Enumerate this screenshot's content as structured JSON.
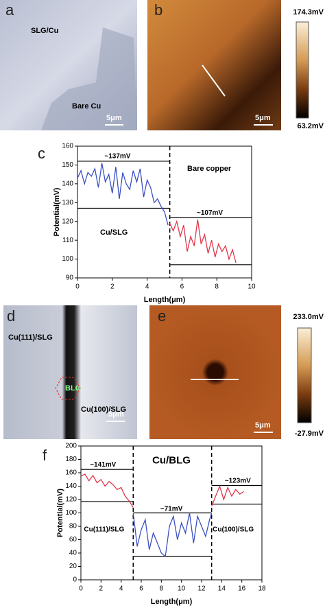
{
  "images": {
    "a": {
      "label": "a",
      "texts": [
        "SLG/Cu",
        "Bare Cu"
      ],
      "scale": "5μm"
    },
    "b": {
      "label": "b",
      "scale": "5μm",
      "colorbar": [
        "174.3mV",
        "63.2mV"
      ]
    },
    "d": {
      "label": "d",
      "texts": [
        "Cu(111)/SLG",
        "Cu(100)/SLG",
        "BLG"
      ],
      "scale": "5μm"
    },
    "e": {
      "label": "e",
      "scale": "5μm",
      "colorbar": [
        "233.0mV",
        "-27.9mV"
      ]
    }
  },
  "chart_data": [
    {
      "type": "line",
      "panel_label": "c",
      "xlabel": "Length(μm)",
      "ylabel": "Potential(mV)",
      "xlim": [
        0,
        10
      ],
      "ylim": [
        90,
        160
      ],
      "xticks": [
        0,
        2,
        4,
        6,
        8,
        10
      ],
      "yticks": [
        90,
        100,
        110,
        120,
        130,
        140,
        150,
        160
      ],
      "series": [
        {
          "color": "#3a4fc4",
          "x": [
            0,
            0.2,
            0.4,
            0.6,
            0.8,
            1.0,
            1.2,
            1.4,
            1.6,
            1.8,
            2.0,
            2.2,
            2.4,
            2.6,
            2.8,
            3.0,
            3.2,
            3.4,
            3.6,
            3.8,
            4.0,
            4.2,
            4.4,
            4.6,
            4.8,
            5.0,
            5.2
          ],
          "values": [
            143,
            147,
            140,
            146,
            144,
            148,
            138,
            151,
            141,
            145,
            135,
            149,
            132,
            146,
            140,
            137,
            147,
            141,
            148,
            133,
            142,
            138,
            130,
            132,
            128,
            125,
            118
          ]
        },
        {
          "color": "#e0374a",
          "x": [
            5.3,
            5.5,
            5.7,
            5.9,
            6.1,
            6.3,
            6.5,
            6.7,
            6.9,
            7.1,
            7.3,
            7.5,
            7.7,
            7.9,
            8.1,
            8.3,
            8.5,
            8.7,
            8.9,
            9.1
          ],
          "values": [
            119,
            115,
            120,
            112,
            118,
            104,
            112,
            107,
            121,
            108,
            113,
            103,
            110,
            101,
            108,
            104,
            107,
            100,
            105,
            98
          ]
        }
      ],
      "hlines": [
        {
          "y": 152,
          "x": [
            0,
            5.3
          ]
        },
        {
          "y": 127,
          "x": [
            0,
            5.3
          ]
        },
        {
          "y": 122,
          "x": [
            5.3,
            10
          ]
        },
        {
          "y": 97,
          "x": [
            5.3,
            10
          ]
        }
      ],
      "vlines": [
        5.3
      ],
      "annotations": [
        "~137mV",
        "~107mV",
        "Bare copper",
        "Cu/SLG"
      ]
    },
    {
      "type": "line",
      "panel_label": "f",
      "xlabel": "Length(μm)",
      "ylabel": "Potential(mV)",
      "xlim": [
        0,
        18
      ],
      "ylim": [
        0,
        200
      ],
      "xticks": [
        0,
        2,
        4,
        6,
        8,
        10,
        12,
        14,
        16,
        18
      ],
      "yticks": [
        0,
        20,
        40,
        60,
        80,
        100,
        120,
        140,
        160,
        180,
        200
      ],
      "series": [
        {
          "color": "#e0374a",
          "x": [
            0,
            0.4,
            0.8,
            1.2,
            1.6,
            2.0,
            2.4,
            2.8,
            3.2,
            3.6,
            4.0,
            4.4,
            4.8,
            5.2
          ],
          "values": [
            155,
            158,
            148,
            156,
            145,
            150,
            140,
            147,
            142,
            135,
            138,
            125,
            118,
            108
          ]
        },
        {
          "color": "#3a4fc4",
          "x": [
            5.2,
            5.6,
            6.0,
            6.4,
            6.8,
            7.2,
            7.6,
            8.0,
            8.4,
            8.8,
            9.2,
            9.6,
            10.0,
            10.4,
            10.8,
            11.2,
            11.6,
            12.0,
            12.4,
            12.8,
            13.0
          ],
          "values": [
            100,
            50,
            75,
            90,
            45,
            70,
            55,
            40,
            35,
            80,
            95,
            60,
            85,
            70,
            100,
            55,
            95,
            80,
            65,
            90,
            100
          ]
        },
        {
          "color": "#e0374a",
          "x": [
            13.0,
            13.4,
            13.8,
            14.2,
            14.6,
            15.0,
            15.4,
            15.8,
            16.2
          ],
          "values": [
            110,
            125,
            140,
            120,
            138,
            125,
            135,
            128,
            132
          ]
        }
      ],
      "hlines": [
        {
          "y": 165,
          "x": [
            0,
            5.2
          ]
        },
        {
          "y": 117,
          "x": [
            0,
            5.2
          ]
        },
        {
          "y": 100,
          "x": [
            5.2,
            13
          ]
        },
        {
          "y": 35,
          "x": [
            5.2,
            13
          ]
        },
        {
          "y": 141,
          "x": [
            13,
            18
          ]
        },
        {
          "y": 113,
          "x": [
            13,
            18
          ]
        }
      ],
      "vlines": [
        5.2,
        13
      ],
      "annotations": [
        "~141mV",
        "~71mV",
        "~123mV",
        "Cu/BLG",
        "Cu(111)/SLG",
        "Cu(100)/SLG"
      ]
    }
  ]
}
